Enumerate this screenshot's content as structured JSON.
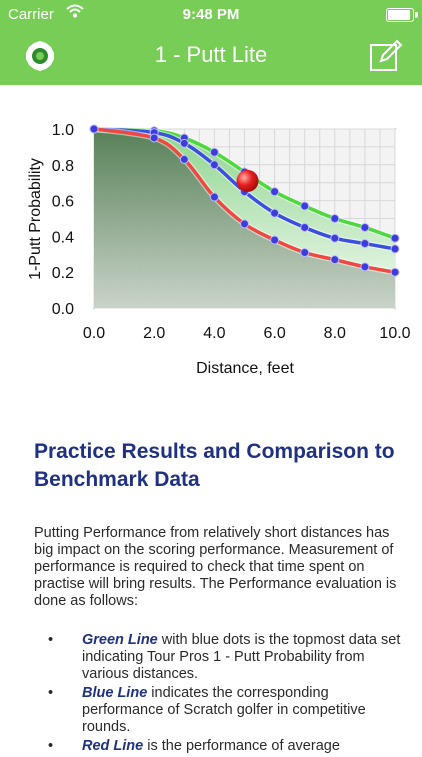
{
  "status": {
    "carrier": "Carrier",
    "time": "9:48 PM"
  },
  "nav": {
    "title": "1 - Putt Lite",
    "left_icon": "gear-icon",
    "right_icon": "edit-icon"
  },
  "chart_data": {
    "type": "line",
    "title": "",
    "xlabel": "Distance, feet",
    "ylabel": "1-Putt Probability",
    "xlim": [
      0,
      10
    ],
    "ylim": [
      0,
      1
    ],
    "x_ticks": [
      "0.0",
      "2.0",
      "4.0",
      "6.0",
      "8.0",
      "10.0"
    ],
    "y_ticks": [
      "0.0",
      "0.2",
      "0.4",
      "0.6",
      "0.8",
      "1.0"
    ],
    "grid": true,
    "series": [
      {
        "color": "#4ed83c",
        "points": [
          [
            0,
            1.0
          ],
          [
            2,
            0.99
          ],
          [
            3,
            0.95
          ],
          [
            4,
            0.87
          ],
          [
            5,
            0.76
          ],
          [
            6,
            0.65
          ],
          [
            7,
            0.57
          ],
          [
            8,
            0.5
          ],
          [
            9,
            0.45
          ],
          [
            10,
            0.39
          ]
        ]
      },
      {
        "color": "#3a4ee0",
        "points": [
          [
            0,
            1.0
          ],
          [
            2,
            0.98
          ],
          [
            3,
            0.92
          ],
          [
            4,
            0.8
          ],
          [
            5,
            0.65
          ],
          [
            6,
            0.53
          ],
          [
            7,
            0.45
          ],
          [
            8,
            0.39
          ],
          [
            9,
            0.36
          ],
          [
            10,
            0.33
          ]
        ]
      },
      {
        "color": "#ef4840",
        "points": [
          [
            0,
            1.0
          ],
          [
            2,
            0.95
          ],
          [
            3,
            0.83
          ],
          [
            4,
            0.62
          ],
          [
            5,
            0.47
          ],
          [
            6,
            0.38
          ],
          [
            7,
            0.31
          ],
          [
            8,
            0.27
          ],
          [
            9,
            0.23
          ],
          [
            10,
            0.2
          ]
        ]
      }
    ],
    "marker": {
      "x": 5.1,
      "y": 0.71,
      "color": "#e81e1e"
    }
  },
  "article": {
    "heading": "Practice Results and Comparison to Benchmark Data",
    "intro": "Putting Performance from relatively short distances has big impact on the scoring performance. Measurement of performance is required to check that time spent on practise will bring results. The Performance evaluation is done as follows:",
    "bullets": [
      {
        "bold": "Green Line",
        "text": " with blue dots is the topmost data set indicating Tour Pros 1 - Putt Probability from various distances."
      },
      {
        "bold": "Blue Line",
        "text": " indicates the corresponding performance of Scratch golfer in competitive rounds."
      },
      {
        "bold": "Red Line",
        "text": " is the performance of average"
      }
    ]
  }
}
